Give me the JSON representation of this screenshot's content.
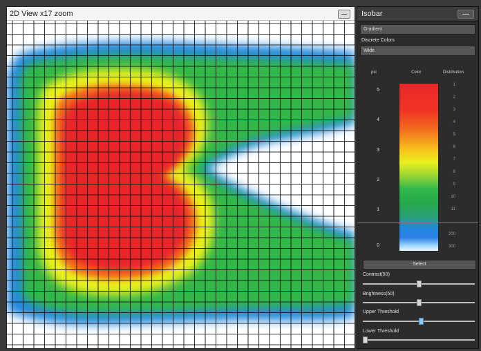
{
  "view2d": {
    "title": "2D View  x17 zoom"
  },
  "isobar": {
    "title": "Isobar",
    "menu": [
      "Gradient",
      "Discrete Colors",
      "Wide"
    ],
    "columns": {
      "left": "psi",
      "middle": "Color",
      "right": "Distribution"
    },
    "scale_labels": [
      "5",
      "4",
      "3",
      "2",
      "1",
      "0"
    ],
    "distribution_values": [
      "1",
      "2",
      "3",
      "4",
      "5",
      "6",
      "7",
      "8",
      "9",
      "10",
      "11",
      "200",
      "300"
    ],
    "select_label": "Select",
    "sliders": [
      {
        "label": "Contrast(50)",
        "value": 0.5,
        "active": false
      },
      {
        "label": "Brightness(50)",
        "value": 0.5,
        "active": false
      },
      {
        "label": "Upper Threshold",
        "value": 0.52,
        "active": true
      },
      {
        "label": "Lower Threshold",
        "value": 0.0,
        "active": false
      }
    ]
  },
  "colors": {
    "panel_bg": "#2c2c2c",
    "heat_high": "#e8272a",
    "heat_mid": "#eaf01f",
    "heat_low": "#26a84b",
    "heat_edge": "#2288e0"
  }
}
